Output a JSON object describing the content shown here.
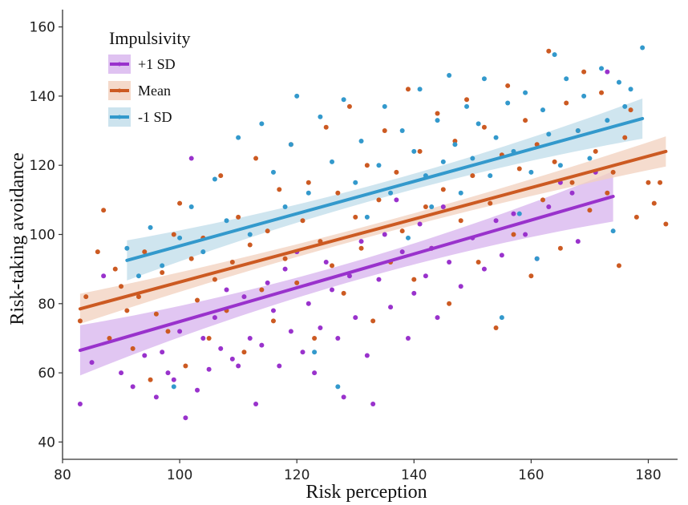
{
  "chart_data": {
    "type": "scatter",
    "xlabel": "Risk perception",
    "ylabel": "Risk-taking avoidance",
    "xlim": [
      80,
      185
    ],
    "ylim": [
      35,
      165
    ],
    "xticks": [
      80,
      100,
      120,
      140,
      160,
      180
    ],
    "yticks": [
      40,
      60,
      80,
      100,
      120,
      140,
      160
    ],
    "grid": false,
    "legend": {
      "title": "Impulsivity",
      "placement": "top-left",
      "entries": [
        "+1 SD",
        "Mean",
        "-1 SD"
      ]
    },
    "series": [
      {
        "name": "+1 SD",
        "color": "#9932cc",
        "band_color": "#d7b3ee",
        "fit": {
          "x": [
            83,
            174
          ],
          "y": [
            66.5,
            111
          ],
          "ci": 5
        },
        "points": [
          [
            83,
            51
          ],
          [
            85,
            63
          ],
          [
            87,
            88
          ],
          [
            90,
            60
          ],
          [
            92,
            56
          ],
          [
            94,
            65
          ],
          [
            96,
            53
          ],
          [
            97,
            66
          ],
          [
            98,
            60
          ],
          [
            99,
            58
          ],
          [
            100,
            72
          ],
          [
            101,
            47
          ],
          [
            102,
            122
          ],
          [
            103,
            55
          ],
          [
            104,
            70
          ],
          [
            105,
            61
          ],
          [
            106,
            76
          ],
          [
            107,
            67
          ],
          [
            108,
            84
          ],
          [
            109,
            64
          ],
          [
            110,
            62
          ],
          [
            111,
            82
          ],
          [
            112,
            70
          ],
          [
            113,
            51
          ],
          [
            114,
            68
          ],
          [
            115,
            86
          ],
          [
            116,
            78
          ],
          [
            117,
            62
          ],
          [
            118,
            90
          ],
          [
            119,
            72
          ],
          [
            120,
            95
          ],
          [
            121,
            66
          ],
          [
            122,
            80
          ],
          [
            123,
            60
          ],
          [
            124,
            73
          ],
          [
            125,
            92
          ],
          [
            126,
            84
          ],
          [
            127,
            70
          ],
          [
            128,
            53
          ],
          [
            129,
            88
          ],
          [
            130,
            76
          ],
          [
            131,
            98
          ],
          [
            132,
            65
          ],
          [
            133,
            51
          ],
          [
            134,
            87
          ],
          [
            135,
            100
          ],
          [
            136,
            79
          ],
          [
            137,
            110
          ],
          [
            138,
            95
          ],
          [
            139,
            70
          ],
          [
            140,
            83
          ],
          [
            141,
            103
          ],
          [
            142,
            88
          ],
          [
            143,
            96
          ],
          [
            144,
            76
          ],
          [
            145,
            108
          ],
          [
            146,
            92
          ],
          [
            148,
            85
          ],
          [
            150,
            99
          ],
          [
            152,
            90
          ],
          [
            154,
            104
          ],
          [
            155,
            94
          ],
          [
            157,
            106
          ],
          [
            159,
            100
          ],
          [
            161,
            93
          ],
          [
            163,
            108
          ],
          [
            165,
            115
          ],
          [
            167,
            112
          ],
          [
            168,
            98
          ],
          [
            171,
            118
          ],
          [
            173,
            147
          ]
        ]
      },
      {
        "name": "Mean",
        "color": "#cc5a22",
        "band_color": "#f2d0bd",
        "fit": {
          "x": [
            83,
            183
          ],
          "y": [
            78.5,
            124
          ],
          "ci": 3
        },
        "points": [
          [
            83,
            75
          ],
          [
            84,
            82
          ],
          [
            86,
            95
          ],
          [
            87,
            107
          ],
          [
            88,
            70
          ],
          [
            89,
            90
          ],
          [
            90,
            85
          ],
          [
            91,
            78
          ],
          [
            92,
            67
          ],
          [
            93,
            82
          ],
          [
            94,
            95
          ],
          [
            95,
            58
          ],
          [
            96,
            77
          ],
          [
            97,
            89
          ],
          [
            98,
            72
          ],
          [
            99,
            100
          ],
          [
            100,
            109
          ],
          [
            101,
            62
          ],
          [
            102,
            93
          ],
          [
            103,
            81
          ],
          [
            104,
            99
          ],
          [
            105,
            70
          ],
          [
            106,
            87
          ],
          [
            107,
            117
          ],
          [
            108,
            78
          ],
          [
            109,
            92
          ],
          [
            110,
            105
          ],
          [
            111,
            66
          ],
          [
            112,
            97
          ],
          [
            113,
            122
          ],
          [
            114,
            84
          ],
          [
            115,
            101
          ],
          [
            116,
            75
          ],
          [
            117,
            113
          ],
          [
            118,
            93
          ],
          [
            119,
            126
          ],
          [
            120,
            86
          ],
          [
            121,
            104
          ],
          [
            122,
            115
          ],
          [
            123,
            70
          ],
          [
            124,
            98
          ],
          [
            125,
            131
          ],
          [
            126,
            91
          ],
          [
            127,
            112
          ],
          [
            128,
            83
          ],
          [
            129,
            137
          ],
          [
            130,
            105
          ],
          [
            131,
            96
          ],
          [
            132,
            120
          ],
          [
            133,
            75
          ],
          [
            134,
            110
          ],
          [
            135,
            130
          ],
          [
            136,
            92
          ],
          [
            137,
            118
          ],
          [
            138,
            101
          ],
          [
            139,
            142
          ],
          [
            140,
            87
          ],
          [
            141,
            124
          ],
          [
            142,
            108
          ],
          [
            143,
            96
          ],
          [
            144,
            135
          ],
          [
            145,
            113
          ],
          [
            146,
            80
          ],
          [
            147,
            127
          ],
          [
            148,
            104
          ],
          [
            149,
            139
          ],
          [
            150,
            117
          ],
          [
            151,
            92
          ],
          [
            152,
            131
          ],
          [
            153,
            109
          ],
          [
            154,
            73
          ],
          [
            155,
            123
          ],
          [
            156,
            143
          ],
          [
            157,
            100
          ],
          [
            158,
            119
          ],
          [
            159,
            133
          ],
          [
            160,
            88
          ],
          [
            161,
            126
          ],
          [
            162,
            110
          ],
          [
            163,
            153
          ],
          [
            164,
            121
          ],
          [
            165,
            96
          ],
          [
            166,
            138
          ],
          [
            167,
            115
          ],
          [
            168,
            130
          ],
          [
            169,
            147
          ],
          [
            170,
            107
          ],
          [
            171,
            124
          ],
          [
            172,
            141
          ],
          [
            173,
            112
          ],
          [
            174,
            118
          ],
          [
            175,
            91
          ],
          [
            176,
            128
          ],
          [
            177,
            136
          ],
          [
            178,
            105
          ],
          [
            180,
            115
          ],
          [
            181,
            109
          ],
          [
            182,
            115
          ],
          [
            183,
            103
          ]
        ]
      },
      {
        "name": "-1 SD",
        "color": "#3399cc",
        "band_color": "#bfdcea",
        "fit": {
          "x": [
            91,
            179
          ],
          "y": [
            92.5,
            133.5
          ],
          "ci": 4
        },
        "points": [
          [
            91,
            96
          ],
          [
            93,
            88
          ],
          [
            95,
            102
          ],
          [
            97,
            91
          ],
          [
            99,
            56
          ],
          [
            100,
            99
          ],
          [
            102,
            108
          ],
          [
            104,
            95
          ],
          [
            106,
            116
          ],
          [
            108,
            104
          ],
          [
            110,
            128
          ],
          [
            112,
            100
          ],
          [
            114,
            132
          ],
          [
            116,
            118
          ],
          [
            118,
            108
          ],
          [
            119,
            126
          ],
          [
            120,
            140
          ],
          [
            122,
            112
          ],
          [
            123,
            66
          ],
          [
            124,
            134
          ],
          [
            126,
            121
          ],
          [
            127,
            56
          ],
          [
            128,
            139
          ],
          [
            130,
            115
          ],
          [
            131,
            127
          ],
          [
            132,
            105
          ],
          [
            134,
            120
          ],
          [
            135,
            137
          ],
          [
            136,
            112
          ],
          [
            138,
            130
          ],
          [
            139,
            99
          ],
          [
            140,
            124
          ],
          [
            141,
            142
          ],
          [
            142,
            117
          ],
          [
            143,
            108
          ],
          [
            144,
            133
          ],
          [
            145,
            121
          ],
          [
            146,
            146
          ],
          [
            147,
            126
          ],
          [
            148,
            112
          ],
          [
            149,
            137
          ],
          [
            150,
            122
          ],
          [
            151,
            132
          ],
          [
            152,
            145
          ],
          [
            153,
            117
          ],
          [
            154,
            128
          ],
          [
            155,
            76
          ],
          [
            156,
            138
          ],
          [
            157,
            124
          ],
          [
            158,
            106
          ],
          [
            159,
            141
          ],
          [
            160,
            118
          ],
          [
            161,
            93
          ],
          [
            162,
            136
          ],
          [
            163,
            129
          ],
          [
            164,
            152
          ],
          [
            165,
            120
          ],
          [
            166,
            145
          ],
          [
            168,
            130
          ],
          [
            169,
            140
          ],
          [
            170,
            122
          ],
          [
            172,
            148
          ],
          [
            173,
            133
          ],
          [
            174,
            101
          ],
          [
            175,
            144
          ],
          [
            176,
            137
          ],
          [
            177,
            142
          ],
          [
            179,
            154
          ]
        ]
      }
    ]
  }
}
